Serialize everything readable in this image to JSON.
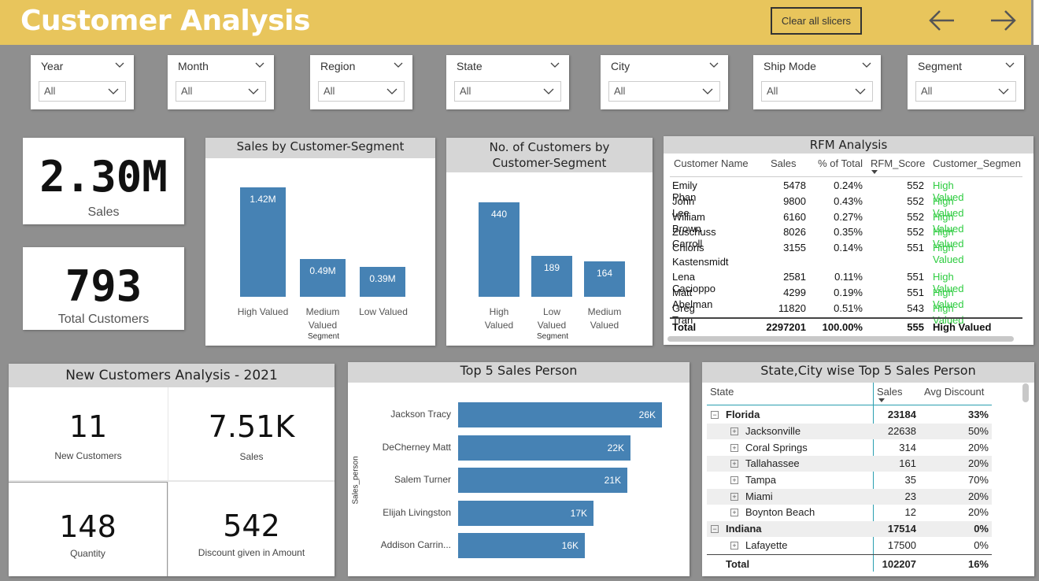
{
  "header": {
    "title": "Customer Analysis",
    "clear_label": "Clear all slicers"
  },
  "slicers": [
    {
      "label": "Year",
      "value": "All"
    },
    {
      "label": "Month",
      "value": "All"
    },
    {
      "label": "Region",
      "value": "All"
    },
    {
      "label": "State",
      "value": "All"
    },
    {
      "label": "City",
      "value": "All"
    },
    {
      "label": "Ship Mode",
      "value": "All"
    },
    {
      "label": "Segment",
      "value": "All"
    }
  ],
  "kpis": {
    "sales": {
      "value": "2.30M",
      "label": "Sales"
    },
    "customers": {
      "value": "793",
      "label": "Total Customers"
    }
  },
  "sales_by_segment": {
    "title": "Sales by Customer-Segment",
    "axis_title": "Segment",
    "bars": [
      {
        "category": "High Valued",
        "value": 1.42,
        "label": "1.42M"
      },
      {
        "category": "Medium Valued",
        "value": 0.49,
        "label": "0.49M"
      },
      {
        "category": "Low Valued",
        "value": 0.39,
        "label": "0.39M"
      }
    ]
  },
  "customers_by_segment": {
    "title_line1": "No. of Customers by",
    "title_line2": "Customer-Segment",
    "axis_title": "Segment",
    "bars": [
      {
        "category": "High Valued",
        "value": 440,
        "label": "440"
      },
      {
        "category": "Low Valued",
        "value": 189,
        "label": "189"
      },
      {
        "category": "Medium Valued",
        "value": 164,
        "label": "164"
      }
    ]
  },
  "rfm": {
    "title": "RFM Analysis",
    "columns": [
      "Customer Name",
      "Sales",
      "% of Total",
      "RFM_Score",
      "Customer_Segmen"
    ],
    "rows": [
      {
        "name": "Emily Phan",
        "sales": "5478",
        "pct": "0.24%",
        "score": "552",
        "segment": "High Valued"
      },
      {
        "name": "John Lee",
        "sales": "9800",
        "pct": "0.43%",
        "score": "552",
        "segment": "High Valued"
      },
      {
        "name": "William Brown",
        "sales": "6160",
        "pct": "0.27%",
        "score": "552",
        "segment": "High Valued"
      },
      {
        "name": "Zuschuss Carroll",
        "sales": "8026",
        "pct": "0.35%",
        "score": "552",
        "segment": "High Valued"
      },
      {
        "name": "Chloris",
        "name2": "Kastensmidt",
        "sales": "3155",
        "pct": "0.14%",
        "score": "551",
        "segment": "High Valued"
      },
      {
        "name": "Lena Cacioppo",
        "sales": "2581",
        "pct": "0.11%",
        "score": "551",
        "segment": "High Valued"
      },
      {
        "name": "Matt Abelman",
        "sales": "4299",
        "pct": "0.19%",
        "score": "551",
        "segment": "High Valued"
      },
      {
        "name": "Greg Tran",
        "sales": "11820",
        "pct": "0.51%",
        "score": "543",
        "segment": "High Valued"
      }
    ],
    "total": {
      "name": "Total",
      "sales": "2297201",
      "pct": "100.00%",
      "score": "555",
      "segment": "High Valued"
    }
  },
  "new_customers": {
    "title": "New Customers Analysis - 2021",
    "cells": [
      {
        "value": "11",
        "label": "New Customers"
      },
      {
        "value": "7.51K",
        "label": "Sales"
      },
      {
        "value": "148",
        "label": "Quantity"
      },
      {
        "value": "542",
        "label": "Discount given in Amount"
      }
    ]
  },
  "top5": {
    "title": "Top 5 Sales Person",
    "axis_title": "Sales_person",
    "bars": [
      {
        "name": "Jackson Tracy",
        "value": 26,
        "label": "26K"
      },
      {
        "name": "DeCherney Matt",
        "value": 22,
        "label": "22K"
      },
      {
        "name": "Salem Turner",
        "value": 21,
        "label": "21K"
      },
      {
        "name": "Elijah Livingston",
        "value": 17,
        "label": "17K"
      },
      {
        "name": "Addison Carrin...",
        "value": 16,
        "label": "16K"
      }
    ]
  },
  "state_matrix": {
    "title": "State,City wise Top 5 Sales Person",
    "columns": [
      "State",
      "Sales",
      "Avg Discount"
    ],
    "rows": [
      {
        "level": 0,
        "name": "Florida",
        "sales": "23184",
        "disc": "33%"
      },
      {
        "level": 1,
        "name": "Jacksonville",
        "sales": "22638",
        "disc": "50%"
      },
      {
        "level": 1,
        "name": "Coral Springs",
        "sales": "314",
        "disc": "20%"
      },
      {
        "level": 1,
        "name": "Tallahassee",
        "sales": "161",
        "disc": "20%"
      },
      {
        "level": 1,
        "name": "Tampa",
        "sales": "35",
        "disc": "70%"
      },
      {
        "level": 1,
        "name": "Miami",
        "sales": "23",
        "disc": "20%"
      },
      {
        "level": 1,
        "name": "Boynton Beach",
        "sales": "12",
        "disc": "20%"
      },
      {
        "level": 0,
        "name": "Indiana",
        "sales": "17514",
        "disc": "0%"
      },
      {
        "level": 1,
        "name": "Lafayette",
        "sales": "17500",
        "disc": "0%"
      }
    ],
    "total": {
      "name": "Total",
      "sales": "102207",
      "disc": "16%"
    }
  },
  "colors": {
    "header": "#e8c55c",
    "bar": "#4682b4",
    "highlight": "#2ecc40",
    "background": "#8f8f8f"
  }
}
